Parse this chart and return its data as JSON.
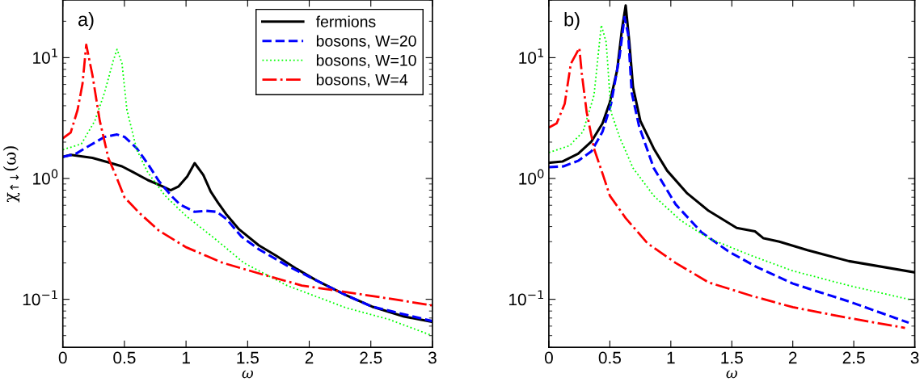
{
  "chart_data": [
    {
      "type": "line",
      "xlabel": "ω",
      "ylabel": "χ$_{↑↓}$(ω)",
      "annotations": [
        "a)"
      ],
      "log": "y",
      "legend": "top right",
      "grid": false,
      "xlim": [
        0,
        3
      ],
      "xticks": [
        0,
        0.5,
        1,
        1.5,
        2,
        2.5,
        3
      ],
      "ylim": [
        0.04,
        30
      ],
      "yticks": [
        {
          "value": 0.1,
          "label": "10$^{−1}$"
        },
        {
          "value": 1,
          "label": "10$^{0}$"
        },
        {
          "value": 10,
          "label": "10$^{1}$"
        }
      ],
      "series": [
        {
          "name": "fermions",
          "color": "#000000",
          "line_style": "solid",
          "x": [
            0,
            0.064,
            0.24,
            0.38,
            0.48,
            0.57,
            0.69,
            0.81,
            0.875,
            0.94,
            1.01,
            1.07,
            1.14,
            1.2,
            1.26,
            1.33,
            1.43,
            1.59,
            1.73,
            1.9,
            2.06,
            2.3,
            2.51,
            2.77,
            3
          ],
          "values": [
            1.51,
            1.57,
            1.48,
            1.35,
            1.26,
            1.13,
            0.97,
            0.86,
            0.8,
            0.86,
            1.04,
            1.34,
            1.07,
            0.78,
            0.63,
            0.5,
            0.38,
            0.28,
            0.23,
            0.178,
            0.143,
            0.108,
            0.087,
            0.072,
            0.065
          ]
        },
        {
          "name": "bosons, W=20",
          "color": "#0000ff",
          "line_style": "dashed",
          "x": [
            0,
            0.1,
            0.22,
            0.34,
            0.44,
            0.5,
            0.6,
            0.69,
            0.78,
            0.88,
            0.95,
            1.07,
            1.16,
            1.25,
            1.33,
            1.45,
            1.59,
            1.82,
            2.06,
            2.3,
            2.51,
            3
          ],
          "values": [
            1.51,
            1.59,
            1.88,
            2.21,
            2.31,
            2.21,
            1.78,
            1.32,
            0.95,
            0.72,
            0.61,
            0.53,
            0.54,
            0.53,
            0.46,
            0.33,
            0.26,
            0.19,
            0.143,
            0.108,
            0.087,
            0.066
          ]
        },
        {
          "name": "bosons, W=10",
          "color": "#00ff00",
          "line_style": "dotted",
          "x": [
            0,
            0.15,
            0.26,
            0.34,
            0.41,
            0.44,
            0.48,
            0.52,
            0.6,
            0.69,
            0.83,
            1.0,
            1.23,
            1.47,
            1.82,
            2.3,
            2.65,
            3
          ],
          "values": [
            1.73,
            1.93,
            3.0,
            5.2,
            9.5,
            11.7,
            9.0,
            3.7,
            1.73,
            1.12,
            0.72,
            0.49,
            0.32,
            0.2,
            0.13,
            0.085,
            0.068,
            0.05
          ]
        },
        {
          "name": "bosons, W=4",
          "color": "#ff0000",
          "line_style": "dashdot",
          "x": [
            0,
            0.064,
            0.12,
            0.16,
            0.19,
            0.24,
            0.3,
            0.37,
            0.43,
            0.5,
            0.62,
            0.78,
            1.0,
            1.3,
            1.59,
            1.94,
            2.37,
            2.77,
            3
          ],
          "values": [
            2.15,
            2.4,
            3.7,
            6.1,
            12.8,
            7.2,
            3.0,
            1.47,
            1.06,
            0.7,
            0.52,
            0.37,
            0.27,
            0.2,
            0.164,
            0.13,
            0.112,
            0.097,
            0.089
          ]
        }
      ]
    },
    {
      "type": "line",
      "xlabel": "ω",
      "annotations": [
        "b)"
      ],
      "log": "y",
      "grid": false,
      "xlim": [
        0,
        3
      ],
      "xticks": [
        0,
        0.5,
        1,
        1.5,
        2,
        2.5,
        3
      ],
      "ylim": [
        0.04,
        30
      ],
      "yticks": [
        {
          "value": 0.1,
          "label": "10$^{−1}$"
        },
        {
          "value": 1,
          "label": "10$^{0}$"
        },
        {
          "value": 10,
          "label": "10$^{1}$"
        }
      ],
      "series": [
        {
          "color": "#000000",
          "line_style": "solid",
          "x": [
            0,
            0.11,
            0.24,
            0.35,
            0.44,
            0.5,
            0.56,
            0.6,
            0.63,
            0.66,
            0.69,
            0.75,
            0.86,
            0.97,
            1.13,
            1.31,
            1.54,
            1.69,
            1.76,
            1.89,
            2.12,
            2.46,
            3
          ],
          "values": [
            1.35,
            1.38,
            1.6,
            2.03,
            2.86,
            4.26,
            7.9,
            17.4,
            27,
            13.4,
            5.7,
            3.0,
            1.77,
            1.16,
            0.76,
            0.54,
            0.39,
            0.365,
            0.32,
            0.3,
            0.255,
            0.207,
            0.167
          ]
        },
        {
          "color": "#0000ff",
          "line_style": "dashed",
          "x": [
            0,
            0.12,
            0.24,
            0.35,
            0.44,
            0.51,
            0.58,
            0.62,
            0.65,
            0.68,
            0.74,
            0.86,
            1.04,
            1.25,
            1.47,
            1.7,
            2.0,
            2.46,
            2.95
          ],
          "values": [
            1.24,
            1.26,
            1.4,
            1.68,
            2.44,
            4.15,
            10.3,
            21.6,
            15.7,
            5.1,
            2.7,
            1.22,
            0.61,
            0.36,
            0.25,
            0.186,
            0.135,
            0.096,
            0.064
          ]
        },
        {
          "color": "#00ff00",
          "line_style": "dotted",
          "x": [
            0,
            0.17,
            0.28,
            0.37,
            0.43,
            0.47,
            0.51,
            0.58,
            0.69,
            0.86,
            1.08,
            1.31,
            1.66,
            2.0,
            2.46,
            2.95
          ],
          "values": [
            1.64,
            1.87,
            2.44,
            4.87,
            18.6,
            13.4,
            3.54,
            2.2,
            1.22,
            0.72,
            0.45,
            0.32,
            0.23,
            0.172,
            0.13,
            0.1
          ]
        },
        {
          "color": "#ff0000",
          "line_style": "dashdot",
          "x": [
            0,
            0.064,
            0.13,
            0.18,
            0.25,
            0.27,
            0.31,
            0.37,
            0.44,
            0.5,
            0.63,
            0.81,
            1.04,
            1.31,
            1.66,
            2.0,
            2.46,
            2.92
          ],
          "values": [
            2.64,
            2.86,
            4.15,
            8.9,
            12,
            7.4,
            3.54,
            1.77,
            1.1,
            0.72,
            0.47,
            0.29,
            0.2,
            0.138,
            0.107,
            0.086,
            0.07,
            0.058
          ]
        }
      ]
    }
  ]
}
